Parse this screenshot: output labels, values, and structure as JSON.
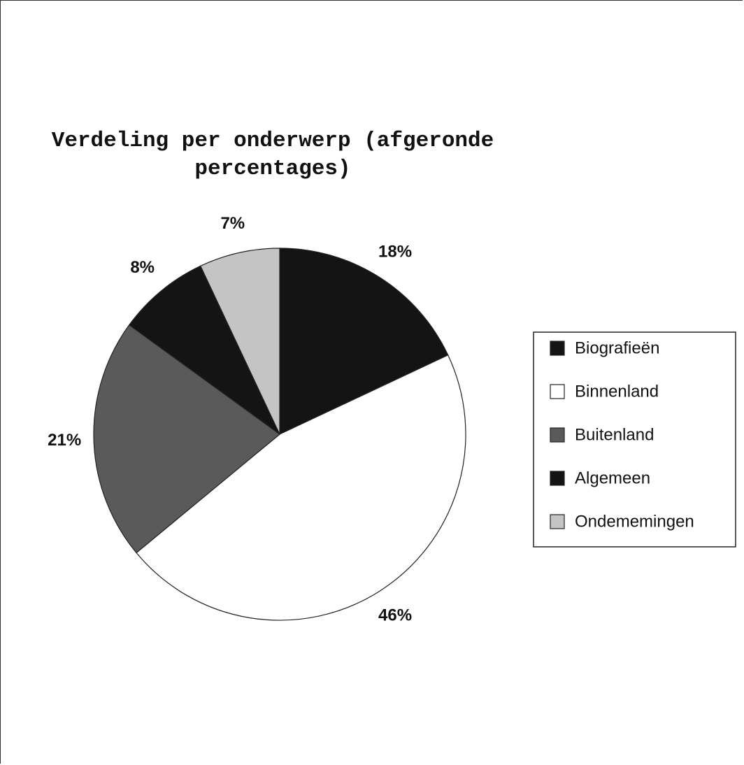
{
  "chart_data": {
    "type": "pie",
    "title": "Verdeling per onderwerp (afgeronde percentages)",
    "categories": [
      "Biografieën",
      "Binnenland",
      "Buitenland",
      "Algemeen",
      "Ondememingen"
    ],
    "values": [
      18,
      46,
      21,
      8,
      7
    ],
    "value_labels": [
      "18%",
      "46%",
      "21%",
      "8%",
      "7%"
    ],
    "colors": [
      "#141414",
      "#ffffff",
      "#5a5a5a",
      "#141414",
      "#c4c4c4"
    ],
    "legend": "right"
  }
}
